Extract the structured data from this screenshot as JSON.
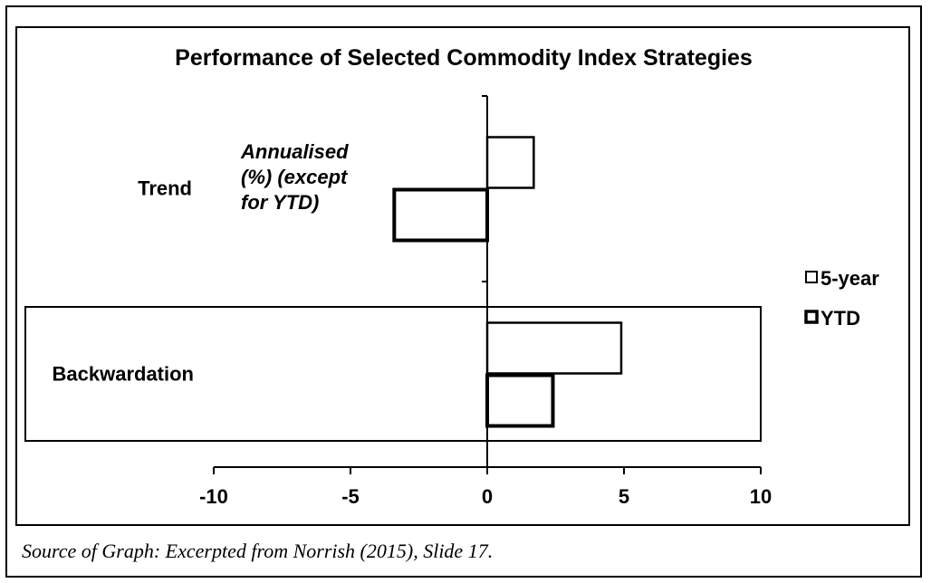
{
  "chart_data": {
    "type": "bar",
    "orientation": "horizontal",
    "title": "Performance of Selected Commodity Index Strategies",
    "annotation": [
      "Annualised",
      "(%) (except",
      "for YTD)"
    ],
    "categories": [
      "Trend",
      "Backwardation"
    ],
    "highlighted_category": "Backwardation",
    "series": [
      {
        "name": "5-year",
        "values": [
          1.7,
          4.9
        ]
      },
      {
        "name": "YTD",
        "values": [
          -3.4,
          2.4
        ]
      }
    ],
    "xlim": [
      -10,
      10
    ],
    "xticks": [
      -10,
      -5,
      0,
      5,
      10
    ],
    "xtick_labels": [
      "-10",
      "-5",
      "0",
      "5",
      "10"
    ],
    "legend_position": "right",
    "grid": false
  },
  "source": "Source of Graph:  Excerpted from Norrish (2015), Slide 17.",
  "colors": {
    "bar_fill": "#ffffff",
    "bar_stroke": "#000000",
    "background": "#ffffff"
  }
}
